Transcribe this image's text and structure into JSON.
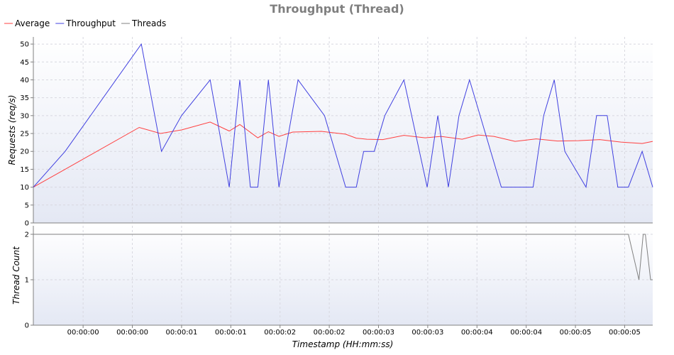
{
  "chart_data": [
    {
      "type": "line",
      "title": "Throughput (Thread)",
      "ylabel": "Requests (req/s)",
      "ylim": [
        0,
        52
      ],
      "yticks": [
        0,
        5,
        10,
        15,
        20,
        25,
        30,
        35,
        40,
        45,
        50
      ],
      "xlim": [
        0,
        5.85
      ],
      "xtick_labels": [
        "00:00:00",
        "00:00:00",
        "00:00:01",
        "00:00:01",
        "00:00:02",
        "00:00:02",
        "00:00:03",
        "00:00:03",
        "00:00:04",
        "00:00:04",
        "00:00:05",
        "00:00:05"
      ],
      "legend": "top-left",
      "grid": true,
      "series": [
        {
          "name": "Average",
          "color": "#ff4040",
          "x": [
            0.0,
            0.3,
            1.0,
            1.2,
            1.4,
            1.67,
            1.85,
            1.95,
            2.12,
            2.22,
            2.32,
            2.45,
            2.72,
            2.95,
            3.05,
            3.15,
            3.3,
            3.5,
            3.7,
            3.85,
            4.05,
            4.2,
            4.35,
            4.55,
            4.75,
            4.95,
            5.15,
            5.35,
            5.55,
            5.75,
            5.85
          ],
          "y": [
            10,
            15,
            26.7,
            25,
            26,
            28.2,
            25.7,
            27.5,
            23.8,
            25.5,
            24.2,
            25.4,
            25.6,
            24.8,
            23.7,
            23.4,
            23.3,
            24.5,
            23.8,
            24.2,
            23.4,
            24.6,
            24.2,
            22.8,
            23.5,
            22.9,
            23.0,
            23.3,
            22.6,
            22.2,
            22.8
          ]
        },
        {
          "name": "Throughput",
          "color": "#4040e0",
          "x": [
            0.0,
            0.3,
            1.02,
            1.21,
            1.4,
            1.67,
            1.85,
            1.95,
            2.05,
            2.12,
            2.22,
            2.32,
            2.5,
            2.75,
            2.95,
            3.05,
            3.12,
            3.22,
            3.32,
            3.5,
            3.72,
            3.82,
            3.92,
            4.02,
            4.12,
            4.42,
            4.72,
            4.82,
            4.92,
            5.02,
            5.22,
            5.32,
            5.42,
            5.52,
            5.62,
            5.75,
            5.85
          ],
          "y": [
            10,
            20,
            50,
            20,
            30,
            40,
            10,
            40,
            10,
            10,
            40,
            10,
            40,
            30,
            10,
            10,
            20,
            20,
            30,
            40,
            10,
            30,
            10,
            30,
            40,
            10,
            10,
            30,
            40,
            20,
            10,
            30,
            30,
            10,
            10,
            20,
            10
          ]
        },
        {
          "name": "Threads",
          "color": "#808080",
          "x": [
            0.0,
            5.62,
            5.72,
            5.76,
            5.78,
            5.83,
            5.85
          ],
          "y": [
            2,
            2,
            1,
            2,
            2,
            1,
            1
          ]
        }
      ]
    },
    {
      "type": "line",
      "ylabel": "Thread Count",
      "xlabel": "Timestamp (HH:mm:ss)",
      "ylim": [
        0,
        2
      ],
      "yticks": [
        0,
        1,
        2
      ]
    }
  ]
}
